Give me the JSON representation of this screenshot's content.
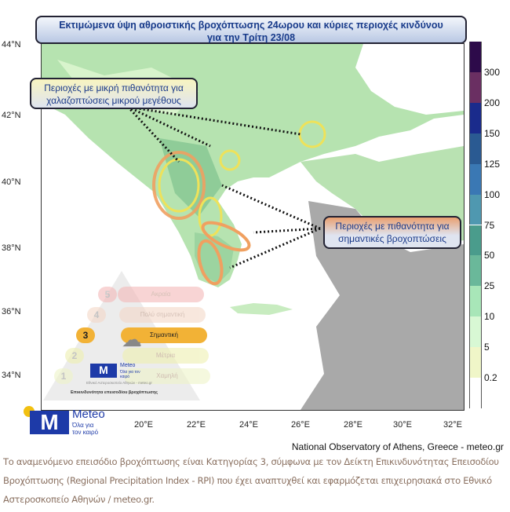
{
  "title": {
    "line1": "Εκτιμώμενα ύψη αθροιστικής βροχόπτωσης 24ωρου και κύριες περιοχές κινδύνου",
    "line2": "για την Τρίτη 23/08"
  },
  "callouts": {
    "hail": {
      "line1": "Περιοχές με μικρή πιθανότητα για",
      "line2": "χαλαζοπτώσεις μικρού μεγέθους"
    },
    "rain": {
      "line1": "Περιοχές με πιθανότητα για",
      "line2": "σημαντικές βροχοπτώσεις"
    }
  },
  "lat_ticks": [
    "44°N",
    "42°N",
    "40°N",
    "38°N",
    "36°N",
    "34°N"
  ],
  "lon_ticks": [
    "20°E",
    "22°E",
    "24°E",
    "26°E",
    "28°E",
    "30°E",
    "32°E"
  ],
  "colorbar": {
    "labels": [
      "300",
      "200",
      "150",
      "125",
      "100",
      "75",
      "50",
      "25",
      "10",
      "5",
      "0.2"
    ],
    "colors": [
      "#2d0a4a",
      "#6a2f62",
      "#1a2b8c",
      "#2a5a92",
      "#3a78b4",
      "#4f98b0",
      "#4a9c8c",
      "#6ab89a",
      "#a8e6b8",
      "#d8f8d4",
      "#f0f6c8",
      "#ffffff"
    ]
  },
  "pyramid": {
    "levels": [
      {
        "num": "5",
        "label": "Ακραία"
      },
      {
        "num": "4",
        "label": "Πολύ σημαντική"
      },
      {
        "num": "3",
        "label": "Σημαντική"
      },
      {
        "num": "2",
        "label": "Μέτρια"
      },
      {
        "num": "1",
        "label": "Χαμηλή"
      }
    ],
    "active_level": 3,
    "logo_name": "Meteo",
    "logo_tagline": "Όλα για τον καιρό",
    "institution": "Εθνικό Αστεροσκοπείο Αθηνών - meteo.gr",
    "caption": "Επικινδυνότητα επεισοδίου βροχόπτωσης"
  },
  "logo": {
    "name": "Meteo",
    "tagline1": "Όλα για",
    "tagline2": "τον καιρό"
  },
  "credit": "National Observatory of Athens, Greece - meteo.gr",
  "caption": "Το αναμενόμενο επεισόδιο βροχόπτωσης είναι Κατηγορίας 3, σύμφωνα με τον Δείκτη Επικινδυνότητας Επεισοδίου Βροχόπτωσης (Regional Precipitation Index - RPI) που έχει αναπτυχθεί και εφαρμόζεται επιχειρησιακά στο Εθνικό Αστεροσκοπείο Αθηνών / meteo.gr."
}
